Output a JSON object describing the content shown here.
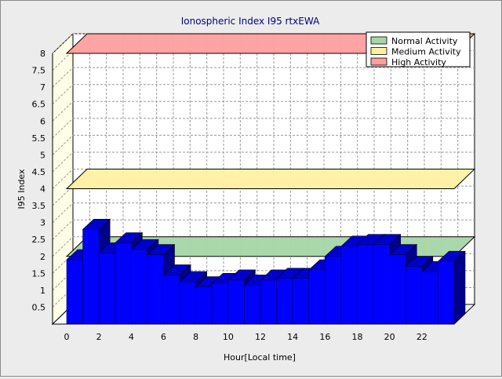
{
  "chart_data": {
    "type": "bar",
    "title": "Ionospheric Index I95 rtxEWA",
    "xlabel": "Hour[Local time]",
    "ylabel": "I95 Index",
    "x_tick_labels": [
      "0",
      "2",
      "4",
      "6",
      "8",
      "10",
      "12",
      "14",
      "16",
      "18",
      "20",
      "22"
    ],
    "y_tick_labels": [
      "0.5",
      "1",
      "1.5",
      "2",
      "2.5",
      "3",
      "3.5",
      "4",
      "4.5",
      "5",
      "5.5",
      "6",
      "6.5",
      "7",
      "7.5",
      "8"
    ],
    "ylim": [
      0,
      8
    ],
    "grid": true,
    "categories": [
      0,
      1,
      2,
      3,
      4,
      5,
      6,
      7,
      8,
      9,
      10,
      11,
      12,
      13,
      14,
      15,
      16,
      17,
      18,
      19,
      20,
      21,
      22,
      23
    ],
    "values": [
      1.9,
      2.8,
      2.1,
      2.4,
      2.2,
      2.05,
      1.45,
      1.25,
      1.1,
      1.2,
      1.3,
      1.15,
      1.3,
      1.35,
      1.35,
      1.6,
      2.0,
      2.3,
      2.35,
      2.35,
      2.05,
      1.7,
      1.55,
      1.85
    ],
    "bar_color": "#0000ff",
    "bands": [
      {
        "name": "Normal Activity",
        "value": 2.0,
        "color": "#a6d6a6"
      },
      {
        "name": "Medium Activity",
        "value": 4.0,
        "color": "#fff0a0"
      },
      {
        "name": "High Activity",
        "value": 8.0,
        "color": "#ff9e9e"
      }
    ],
    "legend_position": "top-right"
  }
}
